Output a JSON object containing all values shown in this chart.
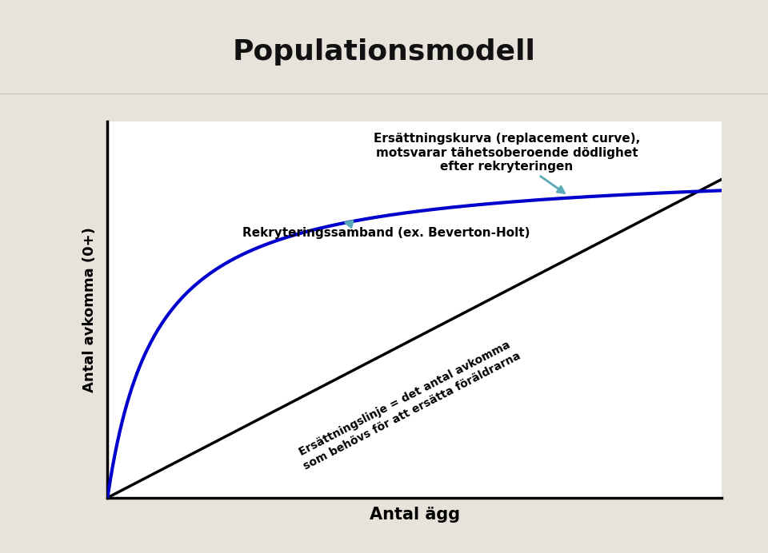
{
  "title": "Populationsmodell",
  "title_fontsize": 26,
  "title_fontweight": "bold",
  "title_bg_color": "#ede8e0",
  "bg_color": "#e8e3da",
  "plot_bg_color": "#ffffff",
  "xlabel": "Antal ägg",
  "ylabel": "Antal avkomma (0+)",
  "xlabel_fontsize": 15,
  "ylabel_fontsize": 13,
  "annotation1_text": "Ersättningskurva (replacement curve),\nmotsvarar tähetsoberoende dödlighet\nefter rekryteringen",
  "annotation2_text": "Rekryteringssamband (ex. Beverton-Holt)",
  "diagonal_text_line1": "Ersättningslinje = det antal avkomma",
  "diagonal_text_line2": "som behövs för att ersätta föräldrarna",
  "curve_color": "#0000cc",
  "line_color": "#000000",
  "arrow_color": "#5baab8",
  "axis_color": "#000000",
  "bh_a": 7.5,
  "bh_b": 0.8,
  "line_slope": 0.72,
  "x_max": 10,
  "y_max": 8.5
}
